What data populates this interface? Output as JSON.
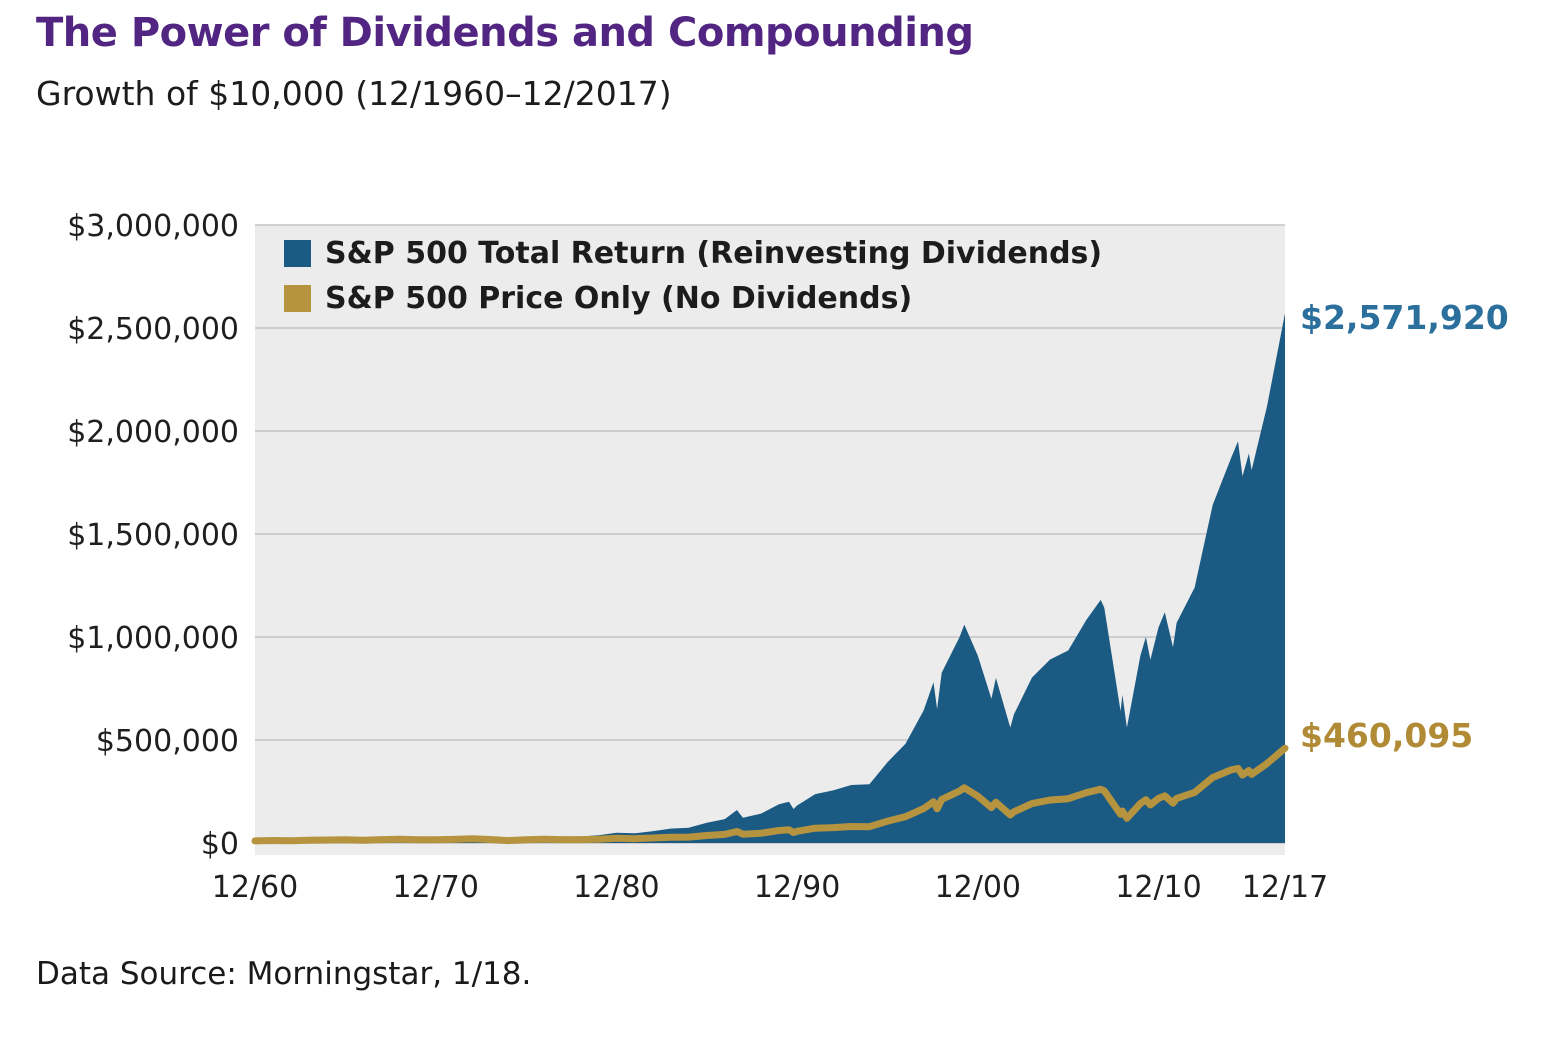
{
  "title": "The Power of Dividends and Compounding",
  "subtitle": "Growth of $10,000 (12/1960–12/2017)",
  "source": "Data Source: Morningstar, 1/18.",
  "annotations": {
    "total_return_end": "$2,571,920",
    "price_only_end": "$460,095"
  },
  "legend": [
    {
      "label": "S&P 500 Total Return (Reinvesting Dividends)",
      "color_key": "total_return"
    },
    {
      "label": "S&P 500 Price Only (No Dividends)",
      "color_key": "price_only"
    }
  ],
  "colors": {
    "total_return": "#1b5a83",
    "price_only": "#b6933e",
    "title": "#522583",
    "plot_bg": "#ececec",
    "gridline": "#c3c3c3",
    "axis_text": "#1f1f1f",
    "total_label": "#2b6f9c",
    "price_label": "#b08a35"
  },
  "chart_data": {
    "type": "area",
    "title": "Growth of $10,000 (12/1960–12/2017)",
    "xlabel": "",
    "ylabel": "",
    "x_unit": "years since 12/1960",
    "ylim": [
      0,
      3000000
    ],
    "grid": "horizontal",
    "legend_position": "top-left-inside",
    "yticks": {
      "values": [
        0,
        500000,
        1000000,
        1500000,
        2000000,
        2500000,
        3000000
      ],
      "labels": [
        "$0",
        "$500,000",
        "$1,000,000",
        "$1,500,000",
        "$2,000,000",
        "$2,500,000",
        "$3,000,000"
      ]
    },
    "xticks": {
      "values": [
        0,
        10,
        20,
        30,
        40,
        50,
        57
      ],
      "labels": [
        "12/60",
        "12/70",
        "12/80",
        "12/90",
        "12/00",
        "12/10",
        "12/17"
      ]
    },
    "x": [
      0,
      1,
      2,
      3,
      4,
      5,
      6,
      7,
      8,
      9,
      10,
      11,
      12,
      13,
      14,
      15,
      16,
      17,
      18,
      19,
      20,
      21,
      22,
      23,
      24,
      25,
      26,
      26.67,
      27,
      28,
      29,
      29.55,
      29.8,
      30,
      31,
      32,
      33,
      34,
      35,
      36,
      37,
      37.55,
      37.75,
      38,
      39,
      39.25,
      40,
      40.75,
      41,
      41.8,
      42,
      43,
      44,
      45,
      46,
      46.8,
      47,
      47.9,
      48,
      48.25,
      49,
      49.3,
      49.55,
      50,
      50.35,
      50.8,
      51,
      52,
      53,
      54,
      54.4,
      54.65,
      55,
      55.15,
      56,
      57
    ],
    "series": [
      {
        "name": "S&P 500 Total Return (Reinvesting Dividends)",
        "end_value": 2571920,
        "values": [
          10000,
          12689,
          11581,
          14221,
          16565,
          18627,
          16753,
          20771,
          23068,
          21107,
          21953,
          25095,
          29858,
          25481,
          18736,
          25706,
          31834,
          29548,
          31486,
          37292,
          49382,
          46957,
          57077,
          69954,
          74340,
          97928,
          116211,
          160000,
          122312,
          142627,
          187825,
          200000,
          165000,
          182003,
          237459,
          255554,
          281314,
          285027,
          392140,
          482177,
          643032,
          780000,
          650000,
          826810,
          1000771,
          1060000,
          909701,
          700000,
          801538,
          560000,
          624398,
          803475,
          890894,
          934636,
          1082215,
          1180000,
          1141630,
          640000,
          719227,
          560000,
          909534,
          1000000,
          890000,
          1046510,
          1120000,
          950000,
          1068591,
          1239566,
          1641062,
          1865704,
          1950000,
          1780000,
          1891451,
          1810000,
          2117668,
          2571920
        ]
      },
      {
        "name": "S&P 500 Price Only (No Dividends)",
        "end_value": 460095,
        "values": [
          10000,
          12313,
          10859,
          12910,
          14584,
          15906,
          13823,
          16601,
          17873,
          15842,
          15858,
          17568,
          20315,
          16787,
          11798,
          15521,
          18493,
          16365,
          16539,
          18575,
          23362,
          21089,
          24202,
          28382,
          28780,
          36359,
          41675,
          56000,
          42520,
          47792,
          60815,
          64000,
          51000,
          56827,
          71776,
          74980,
          80270,
          79035,
          105994,
          127472,
          167000,
          200000,
          166000,
          211535,
          252840,
          268000,
          227204,
          172000,
          197571,
          136000,
          151405,
          191347,
          208555,
          214815,
          244072,
          261000,
          252687,
          140000,
          155438,
          120000,
          191895,
          210000,
          185000,
          216425,
          229000,
          193000,
          216418,
          245430,
          318080,
          354311,
          362000,
          330000,
          351737,
          333000,
          385274,
          460095
        ]
      }
    ]
  }
}
